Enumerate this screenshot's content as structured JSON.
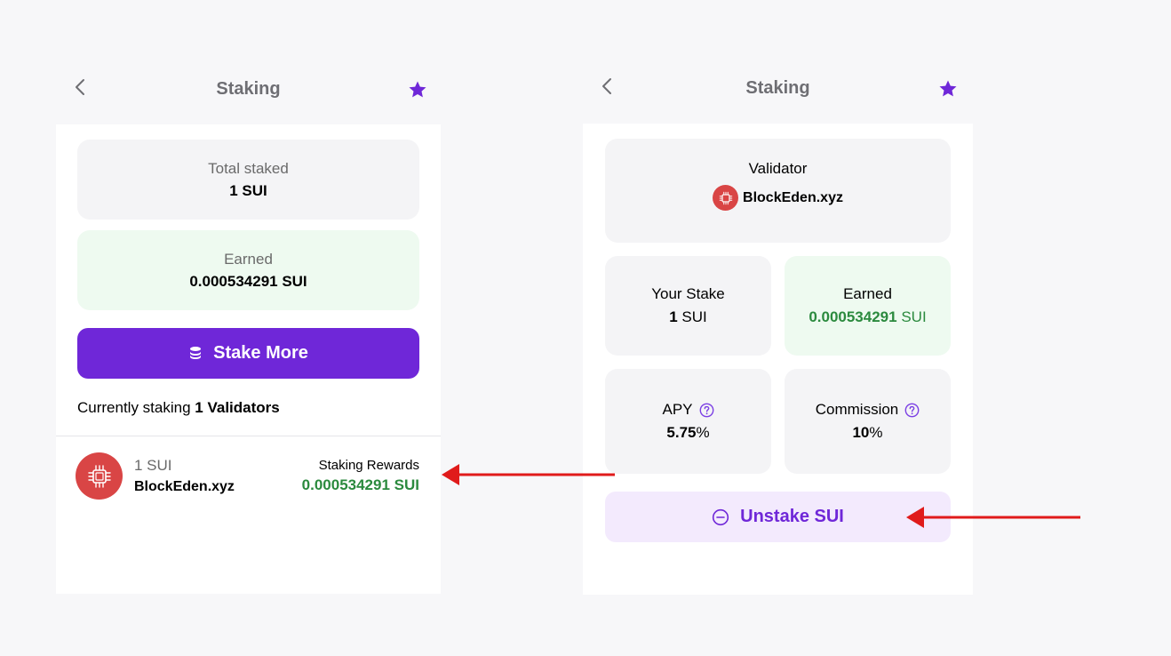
{
  "left_screen": {
    "header": {
      "title": "Staking"
    },
    "total_staked": {
      "label": "Total staked",
      "value": "1 SUI"
    },
    "earned": {
      "label": "Earned",
      "value": "0.000534291 SUI"
    },
    "stake_more_button": "Stake More",
    "currently_staking": {
      "prefix": "Currently staking",
      "count": "1 Validators"
    },
    "validator": {
      "amount": "1 SUI",
      "name": "BlockEden.xyz",
      "rewards_label": "Staking Rewards",
      "rewards_value": "0.000534291 SUI"
    }
  },
  "right_screen": {
    "header": {
      "title": "Staking"
    },
    "validator": {
      "label": "Validator",
      "name": "BlockEden.xyz"
    },
    "your_stake": {
      "label": "Your Stake",
      "value": "1",
      "unit": "SUI"
    },
    "earned": {
      "label": "Earned",
      "value": "0.000534291",
      "unit": "SUI"
    },
    "apy": {
      "label": "APY",
      "value": "5.75",
      "unit": "%"
    },
    "commission": {
      "label": "Commission",
      "value": "10",
      "unit": "%"
    },
    "unstake_button": "Unstake SUI"
  },
  "colors": {
    "accent": "#6f27d8",
    "earned_green": "#2b8a3e",
    "validator_logo": "#d94545",
    "annotation_arrow": "#e01b1b"
  },
  "icons": {
    "back": "chevron-left-icon",
    "favorite": "star-icon",
    "stake_more": "coins-stack-icon",
    "validator_logo": "chip-icon",
    "help": "question-circle-icon",
    "unstake": "minus-circle-icon"
  }
}
